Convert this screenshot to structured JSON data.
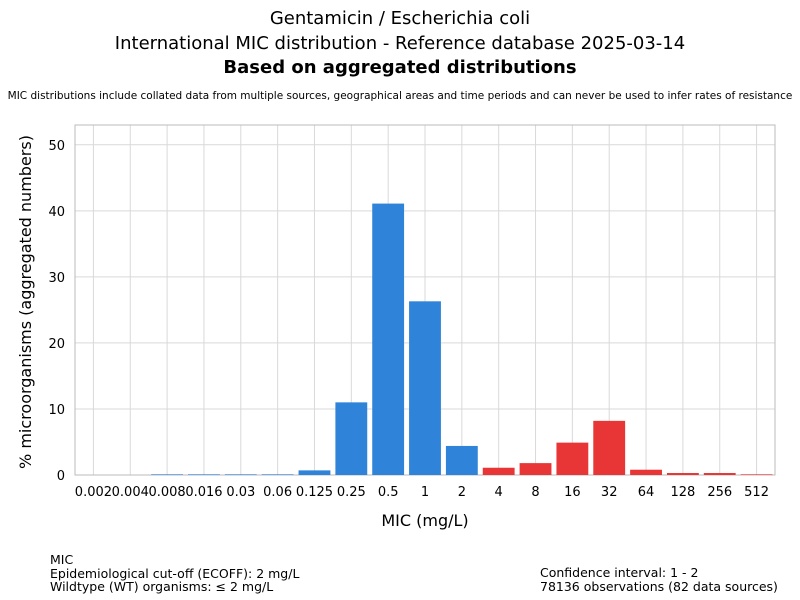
{
  "titles": {
    "line1": "Gentamicin / Escherichia coli",
    "line2": "International MIC distribution - Reference database 2025-03-14",
    "line3": "Based on aggregated distributions",
    "subtitle": "MIC distributions include collated data from multiple sources, geographical areas and time periods and can never be used to infer rates of resistance"
  },
  "footer": {
    "left": [
      "MIC",
      "Epidemiological cut-off (ECOFF): 2 mg/L",
      "Wildtype (WT) organisms: ≤ 2 mg/L"
    ],
    "right": [
      "Confidence interval: 1 - 2",
      "78136 observations (82 data sources)"
    ]
  },
  "colors": {
    "wildtype": "#2f83d9",
    "non_wildtype": "#e83535",
    "grid": "#d9d9d9",
    "axis": "#bbbbbb"
  },
  "chart_data": {
    "type": "bar",
    "xlabel": "MIC (mg/L)",
    "ylabel": "% microorganisms (aggregated numbers)",
    "ylim": [
      0,
      53
    ],
    "yticks": [
      0,
      10,
      20,
      30,
      40,
      50
    ],
    "grid": true,
    "categories": [
      "0.002",
      "0.004",
      "0.008",
      "0.016",
      "0.03",
      "0.06",
      "0.125",
      "0.25",
      "0.5",
      "1",
      "2",
      "4",
      "8",
      "16",
      "32",
      "64",
      "128",
      "256",
      "512"
    ],
    "values": [
      0,
      0,
      0.1,
      0.1,
      0.1,
      0.1,
      0.7,
      11.0,
      41.1,
      26.3,
      4.4,
      1.1,
      1.8,
      4.9,
      8.2,
      0.8,
      0.3,
      0.3,
      0.1
    ],
    "groups": [
      "wildtype",
      "wildtype",
      "wildtype",
      "wildtype",
      "wildtype",
      "wildtype",
      "wildtype",
      "wildtype",
      "wildtype",
      "wildtype",
      "wildtype",
      "non_wildtype",
      "non_wildtype",
      "non_wildtype",
      "non_wildtype",
      "non_wildtype",
      "non_wildtype",
      "non_wildtype",
      "non_wildtype"
    ]
  }
}
